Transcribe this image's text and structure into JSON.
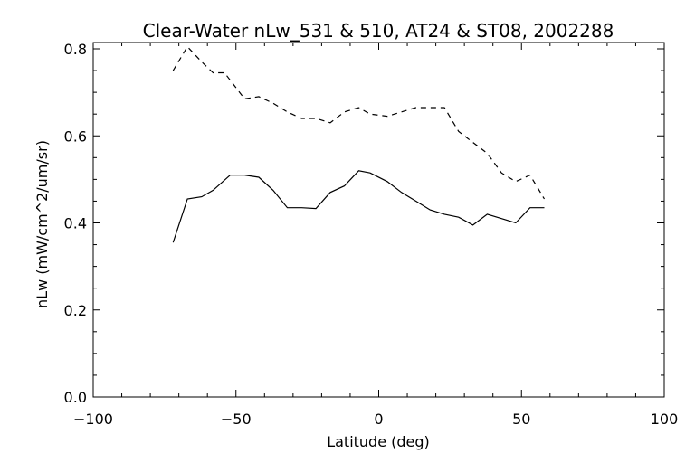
{
  "chart_data": {
    "type": "line",
    "title": "Clear-Water nLw_531 & 510, AT24 & ST08, 2002288",
    "xlabel": "Latitude (deg)",
    "ylabel": "nLw (mW/cm^2/um/sr)",
    "xlim": [
      -100,
      100
    ],
    "ylim": [
      0,
      0.8
    ],
    "x_ticks": [
      -100,
      -50,
      0,
      50,
      100
    ],
    "x_tick_labels": [
      "−100",
      "−50",
      "0",
      "50",
      "100"
    ],
    "y_ticks": [
      0.0,
      0.2,
      0.4,
      0.6,
      0.8
    ],
    "y_tick_labels": [
      "0.0",
      "0.2",
      "0.4",
      "0.6",
      "0.8"
    ],
    "grid": false,
    "series": [
      {
        "style": "solid",
        "x": [
          -72,
          -67,
          -62,
          -58,
          -52,
          -47,
          -42,
          -37,
          -32,
          -27,
          -22,
          -17,
          -12,
          -7,
          -3,
          3,
          8,
          13,
          18,
          23,
          28,
          33,
          38,
          43,
          48,
          53,
          58
        ],
        "y": [
          0.355,
          0.455,
          0.46,
          0.475,
          0.51,
          0.51,
          0.505,
          0.475,
          0.435,
          0.435,
          0.433,
          0.47,
          0.485,
          0.52,
          0.515,
          0.495,
          0.47,
          0.45,
          0.43,
          0.42,
          0.413,
          0.395,
          0.42,
          0.41,
          0.4,
          0.435,
          0.435
        ]
      },
      {
        "style": "dashed",
        "x": [
          -72,
          -67,
          -62,
          -58,
          -54,
          -47,
          -42,
          -37,
          -32,
          -27,
          -22,
          -17,
          -12,
          -7,
          -3,
          3,
          8,
          13,
          18,
          23,
          28,
          33,
          38,
          43,
          48,
          53,
          58
        ],
        "y": [
          0.75,
          0.805,
          0.77,
          0.745,
          0.745,
          0.685,
          0.69,
          0.675,
          0.655,
          0.64,
          0.64,
          0.63,
          0.655,
          0.665,
          0.65,
          0.645,
          0.655,
          0.665,
          0.665,
          0.665,
          0.61,
          0.585,
          0.56,
          0.515,
          0.495,
          0.51,
          0.455
        ]
      }
    ]
  }
}
